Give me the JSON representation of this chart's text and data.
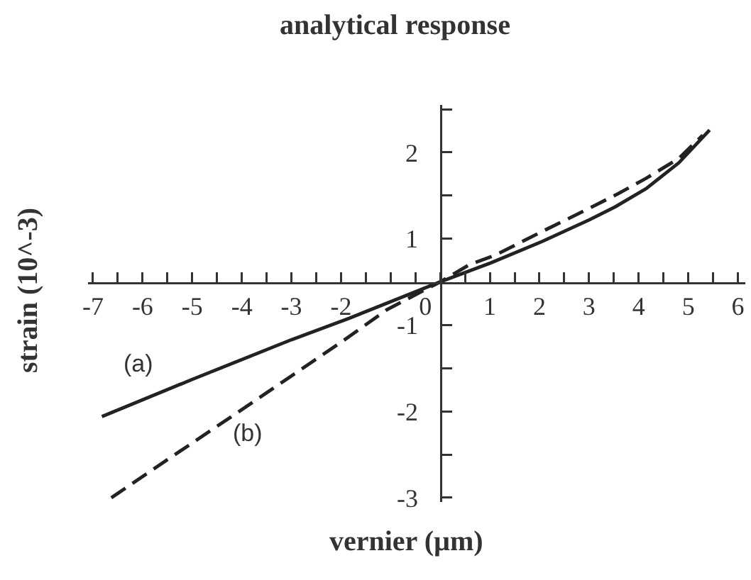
{
  "chart_data": {
    "type": "line",
    "title": "analytical response",
    "xlabel": "vernier (µm)",
    "ylabel": "strain (10^-3)",
    "xlim": [
      -7.1,
      6.15
    ],
    "ylim": [
      -2.55,
      2.05
    ],
    "xticks": [
      -7,
      {
        "value": -6.5,
        "label": null
      },
      -6,
      {
        "value": -5.5,
        "label": null
      },
      -5,
      {
        "value": -4.5,
        "label": null
      },
      -4,
      {
        "value": -3.5,
        "label": null
      },
      -3,
      {
        "value": -2.5,
        "label": null
      },
      -2,
      {
        "value": -1.5,
        "label": null
      },
      {
        "value": -1,
        "label": null
      },
      {
        "value": -0.5,
        "label": null
      },
      0,
      {
        "value": 0.5,
        "label": null
      },
      1,
      {
        "value": 1.5,
        "label": null
      },
      2,
      {
        "value": 2.5,
        "label": null
      },
      3,
      {
        "value": 3.5,
        "label": null
      },
      4,
      {
        "value": 4.5,
        "label": null
      },
      5,
      {
        "value": 5.5,
        "label": null
      },
      6
    ],
    "yticks": [
      {
        "value": 2,
        "label": null
      },
      {
        "value": 1.5,
        "label": "2"
      },
      {
        "value": 1,
        "label": null
      },
      {
        "value": 0.5,
        "label": "1"
      },
      {
        "value": -0.5,
        "label": "-1"
      },
      {
        "value": -1,
        "label": null
      },
      {
        "value": -1.5,
        "label": "-2"
      },
      {
        "value": -2,
        "label": null
      },
      {
        "value": -2.5,
        "label": "-3"
      }
    ],
    "grid": false,
    "legend": false,
    "marker": "none",
    "series": [
      {
        "name": "(a)",
        "color": "#222222",
        "line_style": "solid",
        "x": [
          -6.82,
          -5,
          -3,
          -1.83,
          -1,
          0,
          1.02,
          2.06,
          3.01,
          3.53,
          4.15,
          4.81,
          5.43
        ],
        "values": [
          -1.56,
          -1.13,
          -0.67,
          -0.42,
          -0.23,
          0,
          0.22,
          0.47,
          0.72,
          0.87,
          1.08,
          1.38,
          1.76
        ]
      },
      {
        "name": "(b)",
        "color": "#222222",
        "line_style": "dashed",
        "x": [
          -6.63,
          -5.5,
          -4,
          -3,
          -2,
          -1.07,
          0,
          0.59,
          1.11,
          1.97,
          2.82,
          3.58,
          4.15,
          4.81,
          5.29
        ],
        "values": [
          -2.5,
          -2.06,
          -1.48,
          -1.09,
          -0.7,
          -0.32,
          0,
          0.2,
          0.31,
          0.56,
          0.8,
          1.02,
          1.2,
          1.43,
          1.7
        ]
      }
    ]
  }
}
